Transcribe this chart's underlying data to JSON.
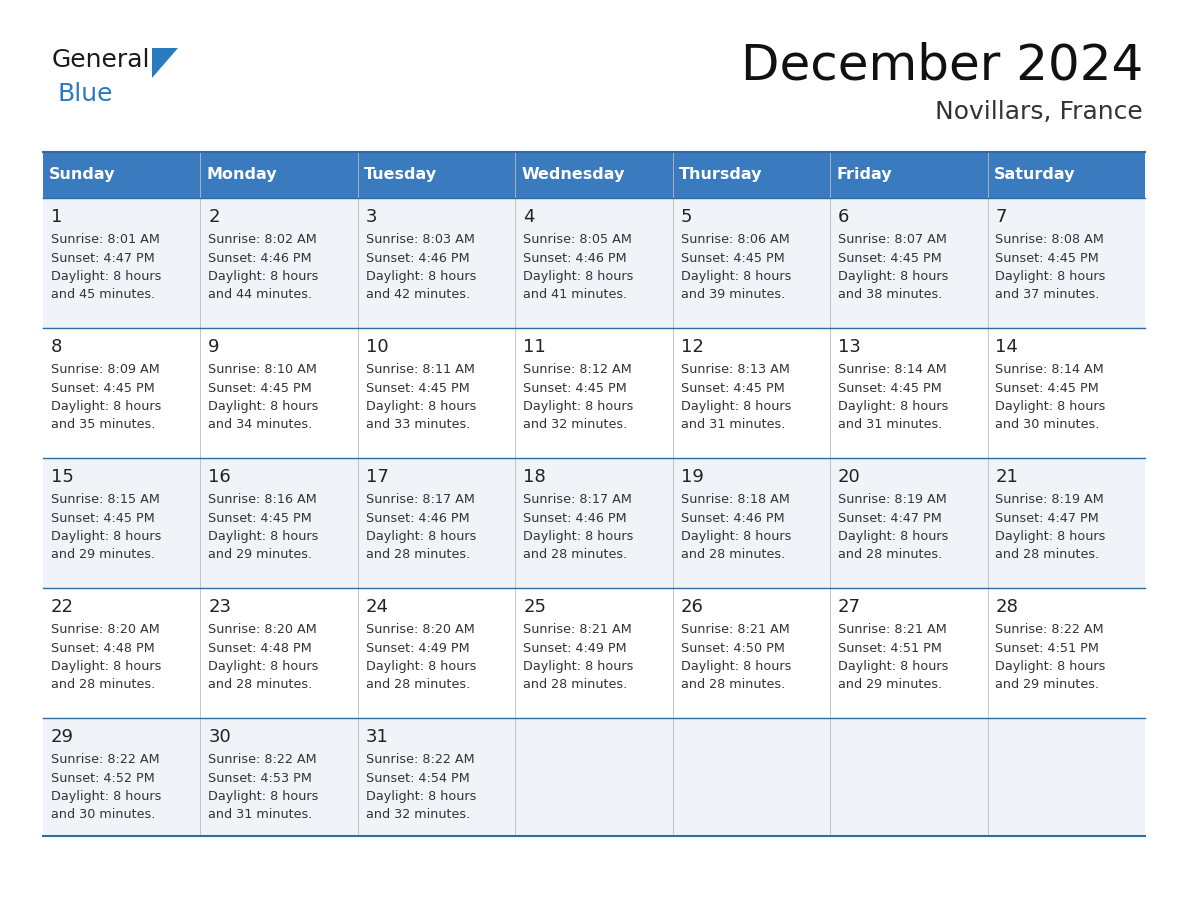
{
  "title": "December 2024",
  "subtitle": "Novillars, France",
  "header_bg": "#3a7abf",
  "header_text_color": "#ffffff",
  "row_bg_odd": "#f0f4f8",
  "row_bg_even": "#ffffff",
  "border_color": "#2e6da4",
  "day_headers": [
    "Sunday",
    "Monday",
    "Tuesday",
    "Wednesday",
    "Thursday",
    "Friday",
    "Saturday"
  ],
  "calendar_data": [
    [
      {
        "day": 1,
        "sunrise": "8:01 AM",
        "sunset": "4:47 PM",
        "daylight_h": "8 hours",
        "daylight_m": "and 45 minutes."
      },
      {
        "day": 2,
        "sunrise": "8:02 AM",
        "sunset": "4:46 PM",
        "daylight_h": "8 hours",
        "daylight_m": "and 44 minutes."
      },
      {
        "day": 3,
        "sunrise": "8:03 AM",
        "sunset": "4:46 PM",
        "daylight_h": "8 hours",
        "daylight_m": "and 42 minutes."
      },
      {
        "day": 4,
        "sunrise": "8:05 AM",
        "sunset": "4:46 PM",
        "daylight_h": "8 hours",
        "daylight_m": "and 41 minutes."
      },
      {
        "day": 5,
        "sunrise": "8:06 AM",
        "sunset": "4:45 PM",
        "daylight_h": "8 hours",
        "daylight_m": "and 39 minutes."
      },
      {
        "day": 6,
        "sunrise": "8:07 AM",
        "sunset": "4:45 PM",
        "daylight_h": "8 hours",
        "daylight_m": "and 38 minutes."
      },
      {
        "day": 7,
        "sunrise": "8:08 AM",
        "sunset": "4:45 PM",
        "daylight_h": "8 hours",
        "daylight_m": "and 37 minutes."
      }
    ],
    [
      {
        "day": 8,
        "sunrise": "8:09 AM",
        "sunset": "4:45 PM",
        "daylight_h": "8 hours",
        "daylight_m": "and 35 minutes."
      },
      {
        "day": 9,
        "sunrise": "8:10 AM",
        "sunset": "4:45 PM",
        "daylight_h": "8 hours",
        "daylight_m": "and 34 minutes."
      },
      {
        "day": 10,
        "sunrise": "8:11 AM",
        "sunset": "4:45 PM",
        "daylight_h": "8 hours",
        "daylight_m": "and 33 minutes."
      },
      {
        "day": 11,
        "sunrise": "8:12 AM",
        "sunset": "4:45 PM",
        "daylight_h": "8 hours",
        "daylight_m": "and 32 minutes."
      },
      {
        "day": 12,
        "sunrise": "8:13 AM",
        "sunset": "4:45 PM",
        "daylight_h": "8 hours",
        "daylight_m": "and 31 minutes."
      },
      {
        "day": 13,
        "sunrise": "8:14 AM",
        "sunset": "4:45 PM",
        "daylight_h": "8 hours",
        "daylight_m": "and 31 minutes."
      },
      {
        "day": 14,
        "sunrise": "8:14 AM",
        "sunset": "4:45 PM",
        "daylight_h": "8 hours",
        "daylight_m": "and 30 minutes."
      }
    ],
    [
      {
        "day": 15,
        "sunrise": "8:15 AM",
        "sunset": "4:45 PM",
        "daylight_h": "8 hours",
        "daylight_m": "and 29 minutes."
      },
      {
        "day": 16,
        "sunrise": "8:16 AM",
        "sunset": "4:45 PM",
        "daylight_h": "8 hours",
        "daylight_m": "and 29 minutes."
      },
      {
        "day": 17,
        "sunrise": "8:17 AM",
        "sunset": "4:46 PM",
        "daylight_h": "8 hours",
        "daylight_m": "and 28 minutes."
      },
      {
        "day": 18,
        "sunrise": "8:17 AM",
        "sunset": "4:46 PM",
        "daylight_h": "8 hours",
        "daylight_m": "and 28 minutes."
      },
      {
        "day": 19,
        "sunrise": "8:18 AM",
        "sunset": "4:46 PM",
        "daylight_h": "8 hours",
        "daylight_m": "and 28 minutes."
      },
      {
        "day": 20,
        "sunrise": "8:19 AM",
        "sunset": "4:47 PM",
        "daylight_h": "8 hours",
        "daylight_m": "and 28 minutes."
      },
      {
        "day": 21,
        "sunrise": "8:19 AM",
        "sunset": "4:47 PM",
        "daylight_h": "8 hours",
        "daylight_m": "and 28 minutes."
      }
    ],
    [
      {
        "day": 22,
        "sunrise": "8:20 AM",
        "sunset": "4:48 PM",
        "daylight_h": "8 hours",
        "daylight_m": "and 28 minutes."
      },
      {
        "day": 23,
        "sunrise": "8:20 AM",
        "sunset": "4:48 PM",
        "daylight_h": "8 hours",
        "daylight_m": "and 28 minutes."
      },
      {
        "day": 24,
        "sunrise": "8:20 AM",
        "sunset": "4:49 PM",
        "daylight_h": "8 hours",
        "daylight_m": "and 28 minutes."
      },
      {
        "day": 25,
        "sunrise": "8:21 AM",
        "sunset": "4:49 PM",
        "daylight_h": "8 hours",
        "daylight_m": "and 28 minutes."
      },
      {
        "day": 26,
        "sunrise": "8:21 AM",
        "sunset": "4:50 PM",
        "daylight_h": "8 hours",
        "daylight_m": "and 28 minutes."
      },
      {
        "day": 27,
        "sunrise": "8:21 AM",
        "sunset": "4:51 PM",
        "daylight_h": "8 hours",
        "daylight_m": "and 29 minutes."
      },
      {
        "day": 28,
        "sunrise": "8:22 AM",
        "sunset": "4:51 PM",
        "daylight_h": "8 hours",
        "daylight_m": "and 29 minutes."
      }
    ],
    [
      {
        "day": 29,
        "sunrise": "8:22 AM",
        "sunset": "4:52 PM",
        "daylight_h": "8 hours",
        "daylight_m": "and 30 minutes."
      },
      {
        "day": 30,
        "sunrise": "8:22 AM",
        "sunset": "4:53 PM",
        "daylight_h": "8 hours",
        "daylight_m": "and 31 minutes."
      },
      {
        "day": 31,
        "sunrise": "8:22 AM",
        "sunset": "4:54 PM",
        "daylight_h": "8 hours",
        "daylight_m": "and 32 minutes."
      },
      null,
      null,
      null,
      null
    ]
  ],
  "logo_color_general": "#1a1a1a",
  "logo_color_blue": "#2a7abf"
}
